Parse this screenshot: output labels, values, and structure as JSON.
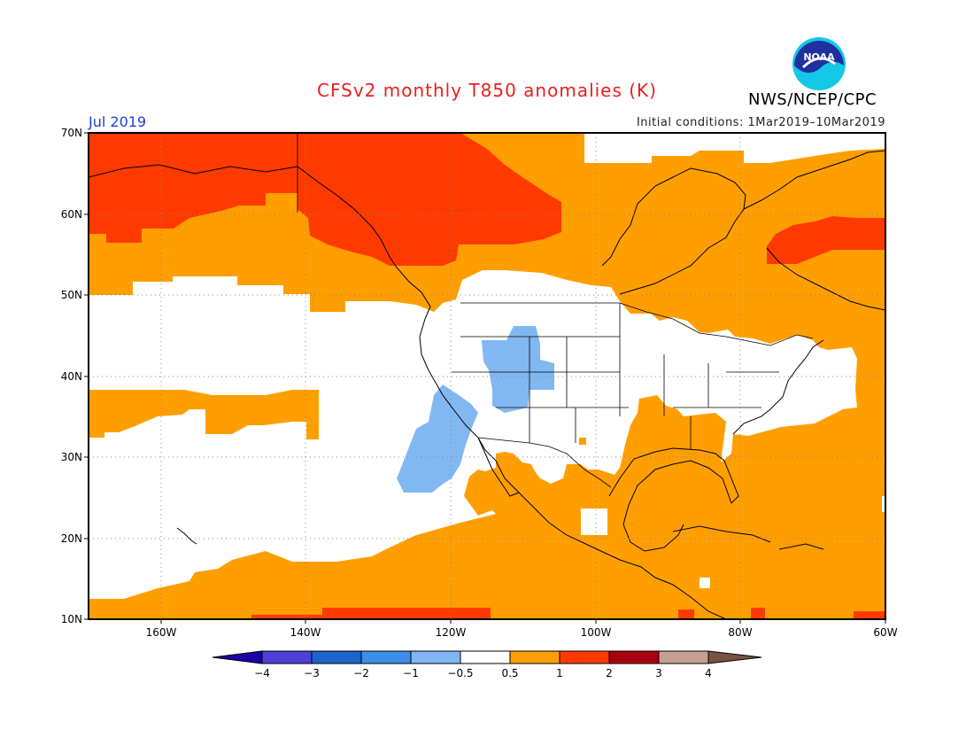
{
  "header": {
    "title": "CFSv2 monthly T850 anomalies (K)",
    "period": "Jul 2019",
    "initial_conditions": "Initial conditions: 1Mar2019–10Mar2019",
    "agency": "NWS/NCEP/CPC",
    "logo_text": "NOAA"
  },
  "map": {
    "projection": "lat-lon",
    "lon_range": [
      -170,
      -60
    ],
    "lat_range": [
      10,
      70
    ],
    "lat_ticks": [
      "70N",
      "60N",
      "50N",
      "40N",
      "30N",
      "20N",
      "10N"
    ],
    "lon_ticks": [
      "160W",
      "140W",
      "120W",
      "100W",
      "80W",
      "60W"
    ],
    "anomaly_regions": [
      {
        "category": "1 to 2",
        "description": "Alaska and western Canada"
      },
      {
        "category": "1 to 2",
        "description": "Labrador / northern Quebec"
      },
      {
        "category": "0.5 to 1",
        "description": "Most of Canada, Gulf of Mexico, tropical Pacific and Atlantic"
      },
      {
        "category": "-0.5 to 0.5",
        "description": "Eastern North Pacific and much of the contiguous US"
      },
      {
        "category": "-1 to -0.5",
        "description": "Great Basin / Colorado Plateau and Pacific off Baja California"
      }
    ]
  },
  "colorbar": {
    "labels": [
      "−4",
      "−3",
      "−2",
      "−1",
      "−0.5",
      "0.5",
      "1",
      "2",
      "3",
      "4"
    ],
    "colors": [
      "#1c00a8",
      "#4e3fd6",
      "#1a64cc",
      "#3c8ee8",
      "#7fb6f2",
      "#ffffff",
      "#ff9e00",
      "#ff3a00",
      "#a8000e",
      "#c8a090",
      "#7a5244"
    ]
  },
  "colors": {
    "weak_warm": "#ff9e00",
    "warm": "#ff3a00",
    "weak_cool": "#82b8f2",
    "neutral": "#ffffff",
    "title": "#e8201e",
    "period": "#1f3fd8"
  }
}
